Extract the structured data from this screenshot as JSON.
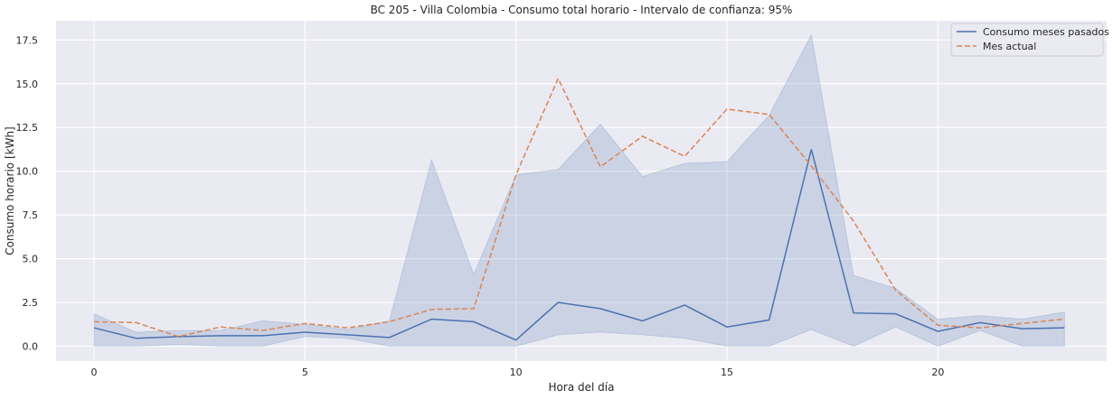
{
  "chart_data": {
    "type": "line",
    "title": "BC 205 - Villa Colombia - Consumo total horario - Intervalo de confianza: 95%",
    "xlabel": "Hora del día",
    "ylabel": "Consumo horario [kWh]",
    "xlim": [
      -0.9,
      24.0
    ],
    "ylim": [
      -0.85,
      18.6
    ],
    "xticks": [
      0,
      5,
      10,
      15,
      20
    ],
    "yticks": [
      0.0,
      2.5,
      5.0,
      7.5,
      10.0,
      12.5,
      15.0,
      17.5
    ],
    "ytick_labels": [
      "0.0",
      "2.5",
      "5.0",
      "7.5",
      "10.0",
      "12.5",
      "15.0",
      "17.5"
    ],
    "grid": true,
    "legend_position": "top-right",
    "x": [
      0,
      1,
      2,
      3,
      4,
      5,
      6,
      7,
      8,
      9,
      10,
      11,
      12,
      13,
      14,
      15,
      16,
      17,
      18,
      19,
      20,
      21,
      22,
      23
    ],
    "series": [
      {
        "name": "Consumo meses pasados",
        "style": "solid",
        "color": "#4c72b0",
        "values": [
          1.05,
          0.45,
          0.55,
          0.6,
          0.6,
          0.8,
          0.65,
          0.5,
          1.55,
          1.4,
          0.35,
          2.5,
          2.15,
          1.45,
          2.35,
          1.1,
          1.5,
          11.25,
          1.9,
          1.85,
          0.85,
          1.35,
          1.0,
          1.05
        ],
        "ci_lower": [
          0.0,
          0.0,
          0.1,
          0.0,
          0.0,
          0.55,
          0.45,
          0.0,
          0.0,
          0.0,
          0.0,
          0.65,
          0.8,
          0.65,
          0.45,
          0.0,
          0.0,
          0.95,
          0.0,
          1.1,
          0.0,
          0.9,
          0.0,
          0.0
        ],
        "ci_upper": [
          1.85,
          0.8,
          0.9,
          0.9,
          1.45,
          1.25,
          0.95,
          1.45,
          10.65,
          4.1,
          9.8,
          10.1,
          12.7,
          9.7,
          10.45,
          10.55,
          13.2,
          17.8,
          4.05,
          3.3,
          1.55,
          1.75,
          1.55,
          1.95
        ]
      },
      {
        "name": "Mes actual",
        "style": "dashed",
        "color": "#dd8452",
        "values": [
          1.4,
          1.35,
          0.55,
          1.1,
          0.9,
          1.3,
          1.05,
          1.4,
          2.1,
          2.15,
          9.8,
          15.3,
          10.25,
          12.0,
          10.85,
          13.55,
          13.25,
          10.3,
          7.15,
          3.2,
          1.2,
          1.05,
          1.3,
          1.55
        ]
      }
    ]
  }
}
